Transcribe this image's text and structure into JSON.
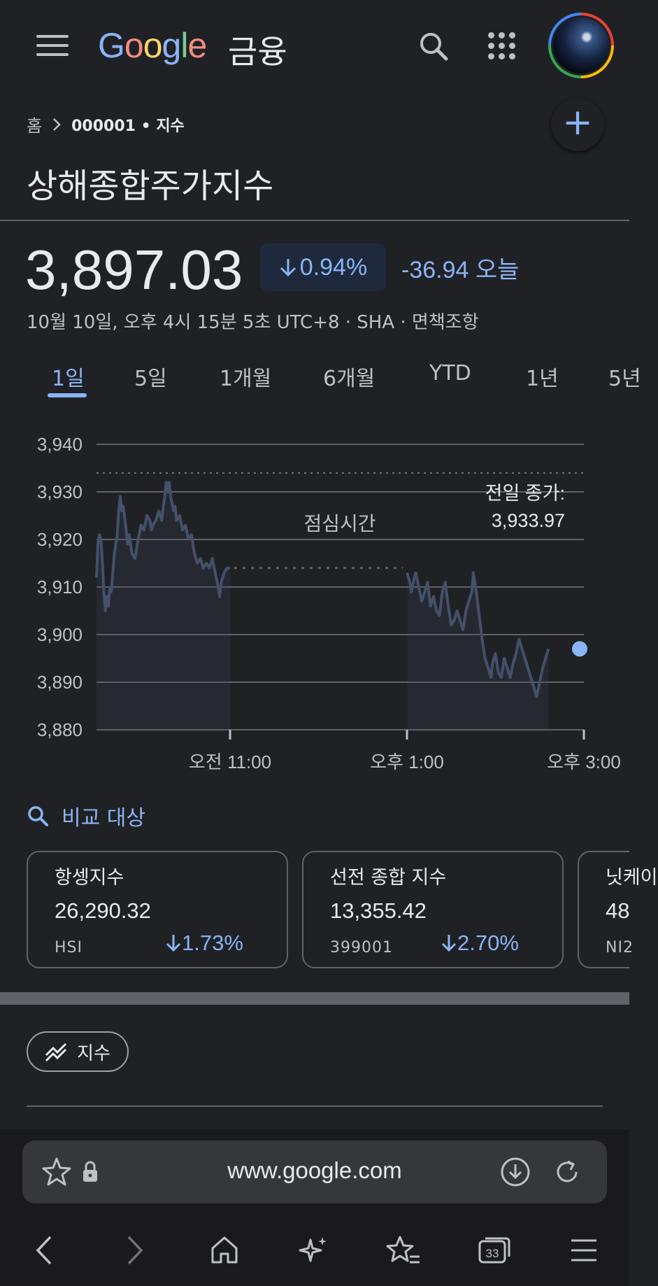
{
  "header": {
    "logo_text": "Google",
    "logo_suffix": "금융"
  },
  "breadcrumb": {
    "home": "홈",
    "current": "000001 • 지수"
  },
  "page_title": "상해종합주가지수",
  "quote": {
    "price": "3,897.03",
    "change_percent": "0.94%",
    "change_abs": "-36.94 오늘",
    "timestamp": "10월 10일, 오후 4시 15분 5초 UTC+8 · SHA · 면책조항"
  },
  "tabs": [
    {
      "label": "1일",
      "active": true
    },
    {
      "label": "5일"
    },
    {
      "label": "1개월"
    },
    {
      "label": "6개월"
    },
    {
      "label": "YTD"
    },
    {
      "label": "1년"
    },
    {
      "label": "5년"
    }
  ],
  "chart_data": {
    "type": "line",
    "y_ticks": [
      "3,940",
      "3,930",
      "3,920",
      "3,910",
      "3,900",
      "3,890",
      "3,880"
    ],
    "x_ticks": [
      "오전 11:00",
      "오후 1:00",
      "오후 3:00"
    ],
    "ylim": [
      3880,
      3940
    ],
    "grid": true,
    "annotation_lunch": "점심시간",
    "previous_close_label": "전일 종가:",
    "previous_close_value": "3,933.97",
    "previous_close": 3933.97,
    "series": [
      {
        "morning": [
          [
            "09:30",
            3912
          ],
          [
            "09:31",
            3919
          ],
          [
            "09:32",
            3921
          ],
          [
            "09:33",
            3920
          ],
          [
            "09:34",
            3915
          ],
          [
            "09:35",
            3909
          ],
          [
            "09:36",
            3905
          ],
          [
            "09:37",
            3908
          ],
          [
            "09:38",
            3906
          ],
          [
            "09:39",
            3910
          ],
          [
            "09:40",
            3909
          ],
          [
            "09:42",
            3917
          ],
          [
            "09:44",
            3921
          ],
          [
            "09:45",
            3926
          ],
          [
            "09:46",
            3929
          ],
          [
            "09:47",
            3926
          ],
          [
            "09:48",
            3927
          ],
          [
            "09:50",
            3922
          ],
          [
            "09:51",
            3919
          ],
          [
            "09:52",
            3921
          ],
          [
            "09:54",
            3917
          ],
          [
            "09:56",
            3916
          ],
          [
            "09:58",
            3920
          ],
          [
            "10:00",
            3923
          ],
          [
            "10:02",
            3922
          ],
          [
            "10:04",
            3925
          ],
          [
            "10:06",
            3924
          ],
          [
            "10:07",
            3922
          ],
          [
            "10:08",
            3923
          ],
          [
            "10:10",
            3924
          ],
          [
            "10:12",
            3926
          ],
          [
            "10:14",
            3924
          ],
          [
            "10:15",
            3927
          ],
          [
            "10:16",
            3929
          ],
          [
            "10:17",
            3932
          ],
          [
            "10:18",
            3930
          ],
          [
            "10:19",
            3932
          ],
          [
            "10:20",
            3929
          ],
          [
            "10:22",
            3926
          ],
          [
            "10:23",
            3927
          ],
          [
            "10:24",
            3924
          ],
          [
            "10:26",
            3925
          ],
          [
            "10:28",
            3922
          ],
          [
            "10:30",
            3923
          ],
          [
            "10:32",
            3920
          ],
          [
            "10:34",
            3921
          ],
          [
            "10:36",
            3917
          ],
          [
            "10:38",
            3915
          ],
          [
            "10:40",
            3916
          ],
          [
            "10:42",
            3914
          ],
          [
            "10:44",
            3915
          ],
          [
            "10:46",
            3914
          ],
          [
            "10:48",
            3916
          ],
          [
            "10:50",
            3913
          ],
          [
            "10:52",
            3910
          ],
          [
            "10:53",
            3908
          ],
          [
            "10:54",
            3911
          ],
          [
            "10:56",
            3913
          ],
          [
            "10:58",
            3914
          ],
          [
            "11:00",
            3914
          ]
        ],
        "afternoon": [
          [
            "13:00",
            3913
          ],
          [
            "13:02",
            3911
          ],
          [
            "13:03",
            3909
          ],
          [
            "13:05",
            3912
          ],
          [
            "13:06",
            3913
          ],
          [
            "13:08",
            3910
          ],
          [
            "13:10",
            3907
          ],
          [
            "13:12",
            3909
          ],
          [
            "13:14",
            3911
          ],
          [
            "13:16",
            3906
          ],
          [
            "13:18",
            3908
          ],
          [
            "13:20",
            3905
          ],
          [
            "13:22",
            3904
          ],
          [
            "13:24",
            3909
          ],
          [
            "13:26",
            3911
          ],
          [
            "13:28",
            3906
          ],
          [
            "13:30",
            3902
          ],
          [
            "13:32",
            3903
          ],
          [
            "13:34",
            3905
          ],
          [
            "13:36",
            3903
          ],
          [
            "13:38",
            3901
          ],
          [
            "13:40",
            3905
          ],
          [
            "13:42",
            3907
          ],
          [
            "13:44",
            3909
          ],
          [
            "13:45",
            3913
          ],
          [
            "13:47",
            3909
          ],
          [
            "13:49",
            3904
          ],
          [
            "13:51",
            3899
          ],
          [
            "13:53",
            3895
          ],
          [
            "13:55",
            3893
          ],
          [
            "13:57",
            3891
          ],
          [
            "13:58",
            3894
          ],
          [
            "14:00",
            3896
          ],
          [
            "14:02",
            3892
          ],
          [
            "14:04",
            3891
          ],
          [
            "14:06",
            3895
          ],
          [
            "14:08",
            3893
          ],
          [
            "14:10",
            3891
          ],
          [
            "14:12",
            3894
          ],
          [
            "14:14",
            3896
          ],
          [
            "14:16",
            3899
          ],
          [
            "14:18",
            3897
          ],
          [
            "14:20",
            3895
          ],
          [
            "14:22",
            3893
          ],
          [
            "14:24",
            3891
          ],
          [
            "14:26",
            3889
          ],
          [
            "14:28",
            3887
          ],
          [
            "14:30",
            3890
          ],
          [
            "14:32",
            3893
          ],
          [
            "14:34",
            3895
          ],
          [
            "14:36",
            3897
          ]
        ]
      }
    ]
  },
  "compare": {
    "label": "비교 대상",
    "cards": [
      {
        "name": "항셍지수",
        "value": "26,290.32",
        "ticker": "HSI",
        "change": "1.73%"
      },
      {
        "name": "선전 종합 지수",
        "value": "13,355.42",
        "ticker": "399001",
        "change": "2.70%"
      },
      {
        "name": "닛케이",
        "value": "48",
        "ticker": "NI2",
        "change": ""
      }
    ]
  },
  "chip": {
    "label": "지수"
  },
  "browser": {
    "url": "www.google.com",
    "tab_count": "33"
  },
  "colors": {
    "accent": "#8ab4f8",
    "background": "#202124",
    "line": "#44506c"
  }
}
